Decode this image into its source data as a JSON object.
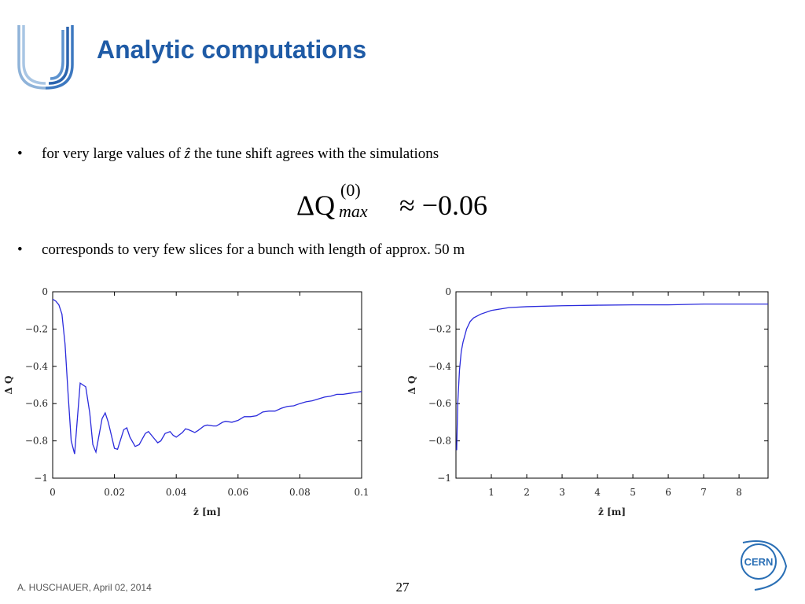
{
  "title": "Analytic computations",
  "bullets": [
    [
      "for very large values of",
      "ẑ",
      "the tune shift agrees with the simulations"
    ],
    [
      "corresponds to very few slices for a bunch with length of approx. 50 m"
    ]
  ],
  "equation": {
    "lhs": "ΔQ",
    "superscript": "(0)",
    "subscript": "max",
    "rhs": "≈ −0.06"
  },
  "footer": "A. HUSCHAUER, April 02, 2014",
  "page_number": "27",
  "logo_text": "CERN",
  "chart_data": [
    {
      "type": "line",
      "xlabel": "ẑ [m]",
      "ylabel": "Δ Q",
      "x": [
        0,
        0.001,
        0.002,
        0.003,
        0.004,
        0.005,
        0.006,
        0.0071,
        0.0089,
        0.0107,
        0.012,
        0.013,
        0.014,
        0.016,
        0.017,
        0.018,
        0.02,
        0.021,
        0.023,
        0.024,
        0.025,
        0.0267,
        0.028,
        0.03,
        0.031,
        0.033,
        0.034,
        0.035,
        0.0364,
        0.038,
        0.039,
        0.04,
        0.042,
        0.043,
        0.044,
        0.046,
        0.047,
        0.049,
        0.05,
        0.052,
        0.053,
        0.055,
        0.056,
        0.058,
        0.06,
        0.062,
        0.064,
        0.066,
        0.068,
        0.07,
        0.072,
        0.074,
        0.076,
        0.078,
        0.08,
        0.082,
        0.084,
        0.086,
        0.088,
        0.09,
        0.092,
        0.094,
        0.096,
        0.098,
        0.1
      ],
      "series": [
        {
          "color": "#2b2bdc",
          "values": [
            -0.04,
            -0.05,
            -0.07,
            -0.12,
            -0.28,
            -0.55,
            -0.8,
            -0.87,
            -0.49,
            -0.51,
            -0.65,
            -0.82,
            -0.86,
            -0.68,
            -0.65,
            -0.7,
            -0.84,
            -0.845,
            -0.74,
            -0.73,
            -0.78,
            -0.83,
            -0.82,
            -0.76,
            -0.75,
            -0.79,
            -0.81,
            -0.8,
            -0.76,
            -0.75,
            -0.77,
            -0.78,
            -0.755,
            -0.735,
            -0.74,
            -0.755,
            -0.745,
            -0.72,
            -0.715,
            -0.72,
            -0.72,
            -0.7,
            -0.695,
            -0.7,
            -0.69,
            -0.67,
            -0.67,
            -0.665,
            -0.645,
            -0.64,
            -0.64,
            -0.625,
            -0.615,
            -0.612,
            -0.6,
            -0.59,
            -0.585,
            -0.575,
            -0.565,
            -0.56,
            -0.55,
            -0.55,
            -0.545,
            -0.54,
            -0.535
          ]
        }
      ],
      "xlim": [
        0,
        0.1
      ],
      "xticks": [
        0,
        0.02,
        0.04,
        0.06,
        0.08,
        0.1
      ],
      "ylim": [
        -1,
        0
      ],
      "yticks": [
        0,
        {
          "value": -0.2,
          "label": "−0.2"
        },
        {
          "value": -0.4,
          "label": "−0.4"
        },
        {
          "value": -0.6,
          "label": "−0.6"
        },
        {
          "value": -0.8,
          "label": "−0.8"
        },
        {
          "value": -1,
          "label": "−1"
        }
      ],
      "grid": false
    },
    {
      "type": "line",
      "xlabel": "ẑ [m]",
      "ylabel": "Δ Q",
      "x": [
        0.02,
        0.05,
        0.1,
        0.15,
        0.2,
        0.3,
        0.4,
        0.5,
        0.7,
        1,
        1.5,
        2,
        3,
        4,
        5,
        6,
        7,
        8,
        8.82
      ],
      "series": [
        {
          "color": "#2b2bdc",
          "values": [
            -0.85,
            -0.6,
            -0.42,
            -0.32,
            -0.27,
            -0.2,
            -0.16,
            -0.14,
            -0.12,
            -0.1,
            -0.085,
            -0.08,
            -0.075,
            -0.072,
            -0.07,
            -0.07,
            -0.066,
            -0.066,
            -0.066
          ]
        }
      ],
      "xlim": [
        0,
        8.82
      ],
      "xticks": [
        1,
        2,
        3,
        4,
        5,
        6,
        7,
        8
      ],
      "ylim": [
        -1,
        0
      ],
      "yticks": [
        0,
        {
          "value": -0.2,
          "label": "−0.2"
        },
        {
          "value": -0.4,
          "label": "−0.4"
        },
        {
          "value": -0.6,
          "label": "−0.6"
        },
        {
          "value": -0.8,
          "label": "−0.8"
        },
        {
          "value": -1,
          "label": "−1"
        }
      ],
      "grid": false
    }
  ]
}
